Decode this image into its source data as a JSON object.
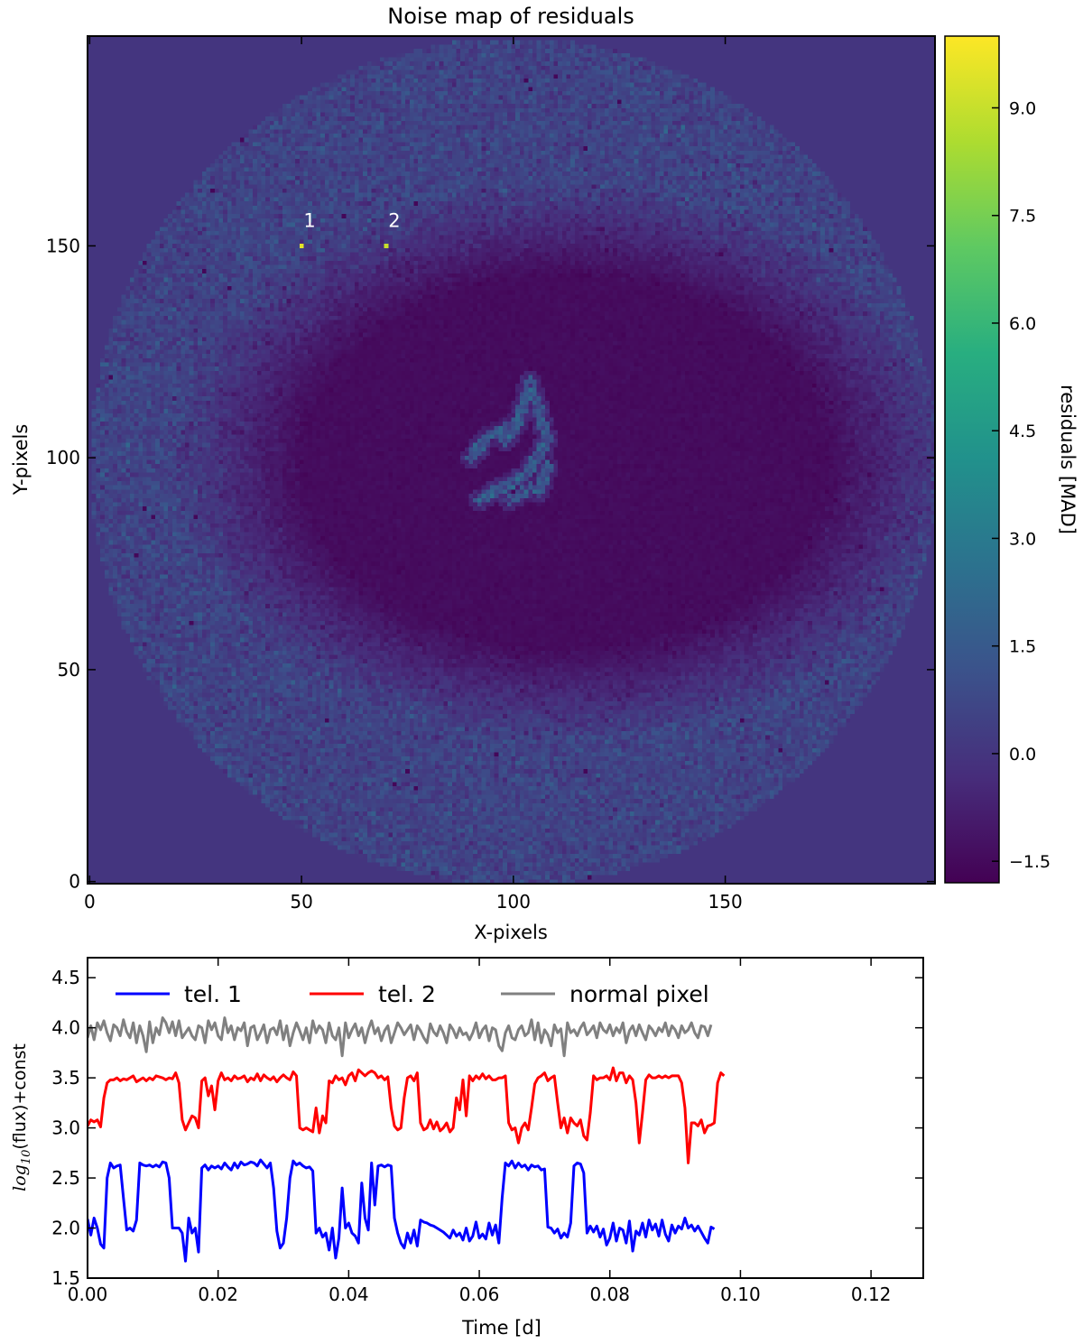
{
  "chart_data": [
    {
      "type": "heatmap",
      "title": "Noise map of residuals",
      "xlabel": "X-pixels",
      "ylabel": "Y-pixels",
      "xlim": [
        0,
        199
      ],
      "ylim": [
        0,
        199
      ],
      "x_ticks": [
        0,
        50,
        100,
        150
      ],
      "x_tick_labels": [
        "0",
        "50",
        "100",
        "150"
      ],
      "y_ticks": [
        0,
        50,
        100,
        150
      ],
      "y_tick_labels": [
        "0",
        "50",
        "100",
        "150"
      ],
      "colormap": "viridis",
      "colorbar": {
        "label": "residuals [MAD]",
        "range": [
          -1.8,
          10.0
        ],
        "ticks": [
          -1.5,
          0.0,
          1.5,
          3.0,
          4.5,
          6.0,
          7.5,
          9.0
        ],
        "tick_labels": [
          "−1.5",
          "0.0",
          "1.5",
          "3.0",
          "4.5",
          "6.0",
          "7.5",
          "9.0"
        ]
      },
      "background_value": 0.0,
      "disk": {
        "center_x": 100,
        "center_y": 99,
        "radius": 100
      },
      "annotations": [
        {
          "label": "1",
          "x": 50,
          "y": 150,
          "value": 9.5
        },
        {
          "label": "2",
          "x": 70,
          "y": 150,
          "value": 9.0
        }
      ]
    },
    {
      "type": "line",
      "xlabel": "Time [d]",
      "ylabel": "log10(flux)+const",
      "xlim": [
        0.0,
        0.128
      ],
      "ylim": [
        1.5,
        4.7
      ],
      "x_ticks": [
        0.0,
        0.02,
        0.04,
        0.06,
        0.08,
        0.1,
        0.12
      ],
      "x_tick_labels": [
        "0.00",
        "0.02",
        "0.04",
        "0.06",
        "0.08",
        "0.10",
        "0.12"
      ],
      "y_ticks": [
        1.5,
        2.0,
        2.5,
        3.0,
        3.5,
        4.0,
        4.5
      ],
      "y_tick_labels": [
        "1.5",
        "2.0",
        "2.5",
        "3.0",
        "3.5",
        "4.0",
        "4.5"
      ],
      "legend_position": "top",
      "x_start": 0.0,
      "x_step": 0.0005,
      "series": [
        {
          "name": "tel. 1",
          "color": "#0000ff",
          "values": [
            2.09,
            1.93,
            2.1,
            2.0,
            1.84,
            1.8,
            2.5,
            2.65,
            2.6,
            2.62,
            2.63,
            2.3,
            1.98,
            2.0,
            1.97,
            2.08,
            2.65,
            2.63,
            2.62,
            2.63,
            2.61,
            2.63,
            2.61,
            2.66,
            2.65,
            2.5,
            2.0,
            2.0,
            2.0,
            1.95,
            1.67,
            2.1,
            1.95,
            2.0,
            1.76,
            2.6,
            2.63,
            2.58,
            2.62,
            2.6,
            2.62,
            2.59,
            2.65,
            2.61,
            2.58,
            2.65,
            2.6,
            2.66,
            2.63,
            2.64,
            2.66,
            2.65,
            2.62,
            2.68,
            2.64,
            2.6,
            2.65,
            2.4,
            1.97,
            1.8,
            1.85,
            2.1,
            2.5,
            2.67,
            2.63,
            2.65,
            2.62,
            2.6,
            2.61,
            2.57,
            1.95,
            2.0,
            1.91,
            1.95,
            1.78,
            2.0,
            1.7,
            1.9,
            2.4,
            2.0,
            2.05,
            1.95,
            1.92,
            1.85,
            2.45,
            2.1,
            1.98,
            2.65,
            2.23,
            2.62,
            2.63,
            2.61,
            2.63,
            2.62,
            2.1,
            1.95,
            1.85,
            1.8,
            1.95,
            1.85,
            1.98,
            1.82,
            2.08,
            2.06,
            2.05,
            2.03,
            2.02,
            2.0,
            1.98,
            1.96,
            1.93,
            1.9,
            1.98,
            1.92,
            1.95,
            1.88,
            2.0,
            1.87,
            1.92,
            2.06,
            1.9,
            1.94,
            1.89,
            2.05,
            1.93,
            2.03,
            1.85,
            2.3,
            2.65,
            2.62,
            2.67,
            2.6,
            2.65,
            2.61,
            2.63,
            2.58,
            2.63,
            2.61,
            2.62,
            2.58,
            2.59,
            2.01,
            2.0,
            1.95,
            1.99,
            1.9,
            1.95,
            1.91,
            2.05,
            2.62,
            2.65,
            2.64,
            2.55,
            1.95,
            2.02,
            1.96,
            2.02,
            1.91,
            1.99,
            1.83,
            1.9,
            2.05,
            1.87,
            2.0,
            1.98,
            1.85,
            2.07,
            1.77,
            1.97,
            1.93,
            2.05,
            1.91,
            2.08,
            1.98,
            2.04,
            1.92,
            2.08,
            1.94,
            1.87,
            2.03,
            1.95,
            2.02,
            1.99,
            2.1,
            2.0,
            2.03,
            1.97,
            2.02,
            1.96,
            1.9,
            1.85,
            2.01,
            1.99
          ]
        },
        {
          "name": "tel. 2",
          "color": "#ff0000",
          "values": [
            3.02,
            3.08,
            3.06,
            3.08,
            3.01,
            3.3,
            3.45,
            3.48,
            3.48,
            3.5,
            3.47,
            3.49,
            3.48,
            3.5,
            3.52,
            3.46,
            3.48,
            3.5,
            3.47,
            3.5,
            3.48,
            3.52,
            3.51,
            3.5,
            3.48,
            3.5,
            3.49,
            3.55,
            3.45,
            3.08,
            2.98,
            3.05,
            3.12,
            3.1,
            3.0,
            3.47,
            3.5,
            3.32,
            3.42,
            3.18,
            3.47,
            3.55,
            3.48,
            3.5,
            3.47,
            3.52,
            3.49,
            3.5,
            3.52,
            3.46,
            3.5,
            3.48,
            3.54,
            3.47,
            3.53,
            3.5,
            3.48,
            3.51,
            3.46,
            3.5,
            3.53,
            3.5,
            3.48,
            3.56,
            3.52,
            3.0,
            2.98,
            3.0,
            2.98,
            2.96,
            3.2,
            2.95,
            3.12,
            3.05,
            3.47,
            3.45,
            3.52,
            3.48,
            3.5,
            3.43,
            3.52,
            3.55,
            3.47,
            3.58,
            3.55,
            3.52,
            3.55,
            3.57,
            3.55,
            3.5,
            3.52,
            3.48,
            3.51,
            3.2,
            3.02,
            2.98,
            3.0,
            3.3,
            3.5,
            3.52,
            3.47,
            3.55,
            3.05,
            2.98,
            3.0,
            3.08,
            2.99,
            3.06,
            2.97,
            3.0,
            3.05,
            2.96,
            3.0,
            3.3,
            3.18,
            3.48,
            3.12,
            3.52,
            3.47,
            3.52,
            3.49,
            3.54,
            3.49,
            3.52,
            3.48,
            3.48,
            3.5,
            3.5,
            3.52,
            3.05,
            2.98,
            3.0,
            2.85,
            3.0,
            3.05,
            2.98,
            3.2,
            3.44,
            3.5,
            3.52,
            3.55,
            3.47,
            3.5,
            3.52,
            3.25,
            3.0,
            3.1,
            2.95,
            3.1,
            3.05,
            3.02,
            3.08,
            2.92,
            2.88,
            3.15,
            3.52,
            3.48,
            3.5,
            3.5,
            3.52,
            3.48,
            3.6,
            3.47,
            3.55,
            3.55,
            3.45,
            3.52,
            3.48,
            3.25,
            2.85,
            3.15,
            3.48,
            3.53,
            3.5,
            3.5,
            3.52,
            3.5,
            3.52,
            3.5,
            3.52,
            3.52,
            3.52,
            3.45,
            3.2,
            2.65,
            3.05,
            3.05,
            3.02,
            3.08,
            2.95,
            3.02,
            3.03,
            3.05,
            3.45,
            3.55,
            3.52
          ]
        },
        {
          "name": "normal pixel",
          "color": "#808080",
          "values": [
            3.9,
            4.02,
            3.88,
            4.05,
            3.98,
            4.07,
            3.95,
            3.87,
            4.03,
            4.0,
            3.92,
            4.08,
            3.96,
            3.9,
            4.05,
            3.85,
            4.02,
            3.92,
            3.76,
            4.06,
            3.85,
            4.0,
            3.93,
            4.1,
            4.05,
            3.95,
            4.06,
            3.92,
            4.07,
            3.9,
            3.95,
            4.0,
            3.92,
            3.88,
            4.02,
            4.0,
            3.85,
            4.07,
            3.98,
            4.05,
            3.92,
            3.88,
            4.1,
            3.95,
            4.02,
            3.88,
            4.0,
            3.97,
            4.05,
            3.82,
            4.0,
            4.02,
            3.88,
            3.95,
            4.03,
            3.85,
            3.98,
            4.0,
            3.93,
            4.07,
            3.88,
            4.02,
            3.82,
            3.95,
            4.05,
            3.97,
            3.88,
            4.0,
            3.85,
            4.07,
            3.95,
            4.02,
            3.98,
            3.85,
            4.05,
            3.92,
            3.88,
            4.0,
            3.72,
            4.05,
            3.9,
            3.98,
            4.04,
            3.92,
            4.0,
            3.85,
            3.98,
            4.07,
            3.94,
            4.0,
            3.87,
            3.97,
            4.02,
            3.85,
            3.95,
            4.05,
            4.0,
            3.93,
            3.98,
            4.03,
            3.88,
            4.02,
            3.97,
            3.9,
            3.85,
            4.04,
            3.96,
            3.92,
            4.02,
            3.95,
            3.85,
            4.03,
            3.98,
            3.9,
            4.0,
            3.93,
            3.95,
            3.88,
            3.95,
            4.05,
            3.9,
            3.98,
            4.02,
            3.87,
            4.0,
            3.98,
            3.82,
            3.77,
            3.95,
            4.02,
            3.9,
            3.88,
            3.98,
            4.02,
            3.92,
            3.95,
            4.08,
            3.88,
            4.05,
            3.85,
            3.98,
            3.93,
            3.82,
            4.03,
            3.95,
            3.99,
            3.72,
            4.05,
            3.95,
            3.98,
            3.92,
            4.0,
            4.05,
            3.93,
            3.97,
            4.02,
            3.9,
            4.05,
            3.98,
            3.95,
            4.03,
            3.92,
            4.0,
            3.95,
            4.05,
            3.85,
            3.97,
            4.02,
            3.92,
            4.03,
            3.95,
            3.88,
            4.02,
            3.98,
            3.92,
            4.0,
            3.96,
            4.05,
            3.92,
            4.02,
            3.98,
            3.9,
            4.02,
            3.95,
            3.98,
            4.05,
            3.95,
            3.9,
            4.02,
            4.01,
            3.92,
            4.03
          ]
        }
      ]
    }
  ]
}
